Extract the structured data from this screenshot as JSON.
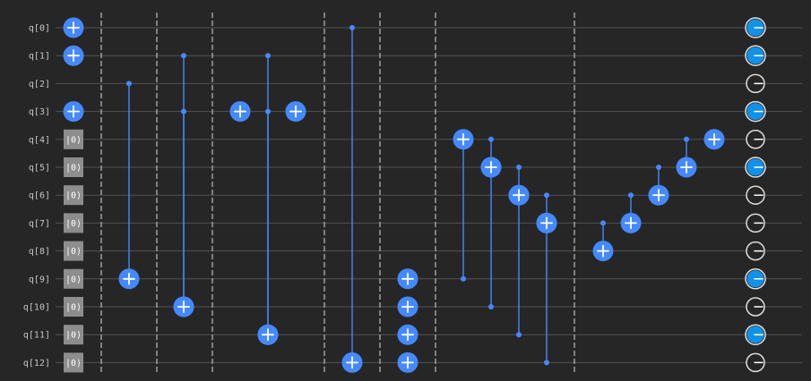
{
  "circuit": {
    "qubits": [
      "q[0]",
      "q[1]",
      "q[2]",
      "q[3]",
      "q[4]",
      "q[5]",
      "q[6]",
      "q[7]",
      "q[8]",
      "q[9]",
      "q[10]",
      "q[11]",
      "q[12]"
    ],
    "reset_label": "|0⟩",
    "colors": {
      "background": "#262626",
      "wire": "#525252",
      "gate": "#4589ff",
      "reset": "#8d8d8d",
      "barrier": "#a8a8a8",
      "measure_fill": "#1192e8",
      "measure_ring": "#e0e0e0",
      "label": "#c6c6c6"
    },
    "initial_x_qubits": [
      0,
      1,
      3
    ],
    "reset_qubits": [
      4,
      5,
      6,
      7,
      8,
      9,
      10,
      11,
      12
    ],
    "barrier_count": 7,
    "operations": [
      {
        "gate": "cx",
        "control": 2,
        "target": 9
      },
      {
        "gate": "cx",
        "control": 1,
        "target": 10
      },
      {
        "gate": "cx",
        "control": 3,
        "target": 10
      },
      {
        "gate": "x",
        "target": 3
      },
      {
        "gate": "cx",
        "control": 1,
        "target": 11
      },
      {
        "gate": "cx",
        "control": 3,
        "target": 11
      },
      {
        "gate": "x",
        "target": 3
      },
      {
        "gate": "cx",
        "control": 0,
        "target": 12
      },
      {
        "gate": "x",
        "target": 9
      },
      {
        "gate": "x",
        "target": 10
      },
      {
        "gate": "x",
        "target": 11
      },
      {
        "gate": "x",
        "target": 12
      },
      {
        "gate": "cx",
        "control": 9,
        "target": 4
      },
      {
        "gate": "cx",
        "control": 10,
        "target": 5
      },
      {
        "gate": "cx",
        "control": 4,
        "target": 5
      },
      {
        "gate": "cx",
        "control": 11,
        "target": 6
      },
      {
        "gate": "cx",
        "control": 5,
        "target": 6
      },
      {
        "gate": "cx",
        "control": 12,
        "target": 7
      },
      {
        "gate": "cx",
        "control": 6,
        "target": 7
      },
      {
        "gate": "cx",
        "control": 7,
        "target": 8
      },
      {
        "gate": "cx",
        "control": 6,
        "target": 7
      },
      {
        "gate": "cx",
        "control": 5,
        "target": 6
      },
      {
        "gate": "cx",
        "control": 4,
        "target": 5
      },
      {
        "gate": "x",
        "target": 4
      }
    ],
    "measurements": [
      {
        "qubit": 0,
        "state": "filled"
      },
      {
        "qubit": 1,
        "state": "filled"
      },
      {
        "qubit": 2,
        "state": "empty"
      },
      {
        "qubit": 3,
        "state": "filled"
      },
      {
        "qubit": 4,
        "state": "empty"
      },
      {
        "qubit": 5,
        "state": "filled"
      },
      {
        "qubit": 6,
        "state": "empty"
      },
      {
        "qubit": 7,
        "state": "empty"
      },
      {
        "qubit": 8,
        "state": "empty"
      },
      {
        "qubit": 9,
        "state": "filled"
      },
      {
        "qubit": 10,
        "state": "empty"
      },
      {
        "qubit": 11,
        "state": "filled"
      },
      {
        "qubit": 12,
        "state": "empty"
      }
    ]
  }
}
